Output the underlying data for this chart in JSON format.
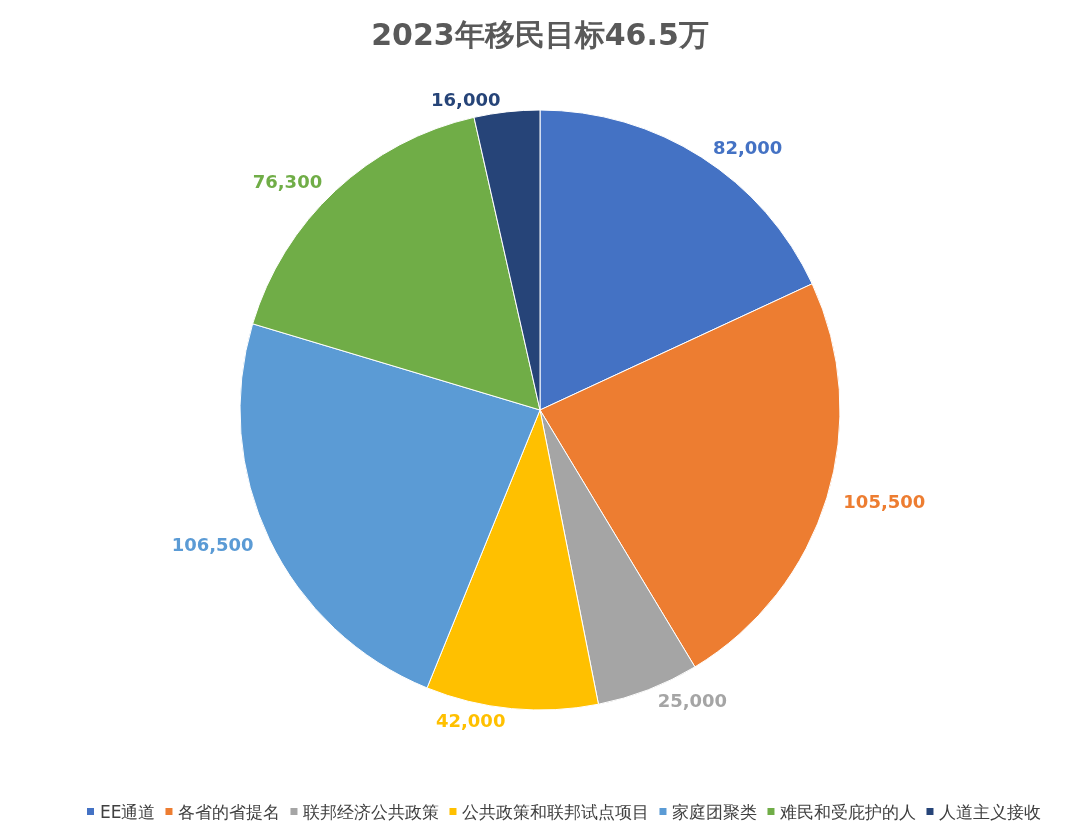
{
  "chart_data": {
    "type": "pie",
    "title": "2023年移民目标46.5万",
    "categories": [
      "EE通道",
      "各省的省提名",
      "联邦经济公共政策",
      "公共政策和联邦试点项目",
      "家庭团聚类",
      "难民和受庇护的人",
      "人道主义接收"
    ],
    "values": [
      82000,
      105500,
      25000,
      42000,
      106500,
      76300,
      16000
    ],
    "colors": [
      "#4472c4",
      "#ed7d31",
      "#a5a5a5",
      "#ffc000",
      "#5b9bd5",
      "#70ad47",
      "#264478"
    ],
    "value_labels": [
      "82,000",
      "105,500",
      "25,000",
      "42,000",
      "106,500",
      "76,300",
      "16,000"
    ],
    "legend": "bottom"
  }
}
